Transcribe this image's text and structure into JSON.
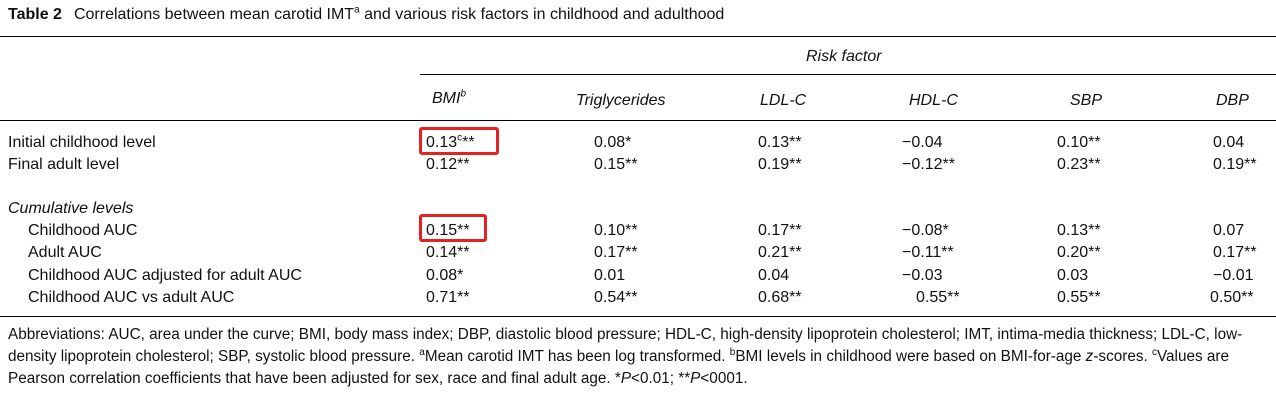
{
  "table": {
    "label": "Table 2",
    "caption_pre": "Correlations between mean carotid IMT",
    "caption_sup": "a",
    "caption_post": " and various risk factors in childhood and adulthood",
    "spanner": "Risk factor",
    "columns": [
      "BMI",
      "Triglycerides",
      "LDL-C",
      "HDL-C",
      "SBP",
      "DBP"
    ],
    "bmi_sup": "b",
    "rows": [
      {
        "label": "Initial childhood level",
        "values": [
          "0.13",
          "0.08*",
          "0.13**",
          "−0.04",
          "0.10**",
          "0.04"
        ]
      },
      {
        "label": "Final adult level",
        "values": [
          "0.12**",
          "0.15**",
          "0.19**",
          "−0.12**",
          "0.23**",
          "0.19**"
        ]
      },
      {
        "label": "Cumulative levels"
      },
      {
        "label": "Childhood AUC",
        "values": [
          "0.15**",
          "0.10**",
          "0.17**",
          "−0.08*",
          "0.13**",
          "0.07"
        ]
      },
      {
        "label": "Adult AUC",
        "values": [
          "0.14**",
          "0.17**",
          "0.21**",
          "−0.11**",
          "0.20**",
          "0.17**"
        ]
      },
      {
        "label": "Childhood AUC adjusted for adult AUC",
        "values": [
          "0.08*",
          "0.01",
          "0.04",
          "−0.03",
          "0.03",
          "−0.01"
        ]
      },
      {
        "label": "Childhood AUC vs adult AUC",
        "values": [
          "0.71**",
          "0.54**",
          "0.68**",
          "0.55**",
          "0.55**",
          "0.50**"
        ]
      }
    ],
    "first_cell_sup": "c",
    "first_cell_stars": "**"
  },
  "footnote": {
    "abbrev": "Abbreviations: AUC, area under the curve; BMI, body mass index; DBP, diastolic blood pressure; HDL-C, high-density lipoprotein cholesterol; IMT, intima-media thickness; LDL-C, low-density lipoprotein cholesterol; SBP, systolic blood pressure. ",
    "a_mark": "a",
    "a_text": "Mean carotid IMT has been log transformed. ",
    "b_mark": "b",
    "b_text_pre": "BMI levels in childhood were based on BMI-for-age ",
    "b_text_ital": "z",
    "b_text_post": "-scores. ",
    "c_mark": "c",
    "c_text": "Values are Pearson correlation coefficients that have been adjusted for sex, race and final adult age. *",
    "p1": "P",
    "p1_rest": "<0.01; **",
    "p2": "P",
    "p2_rest": "<0001."
  },
  "highlights": {
    "color": "#e32222"
  }
}
